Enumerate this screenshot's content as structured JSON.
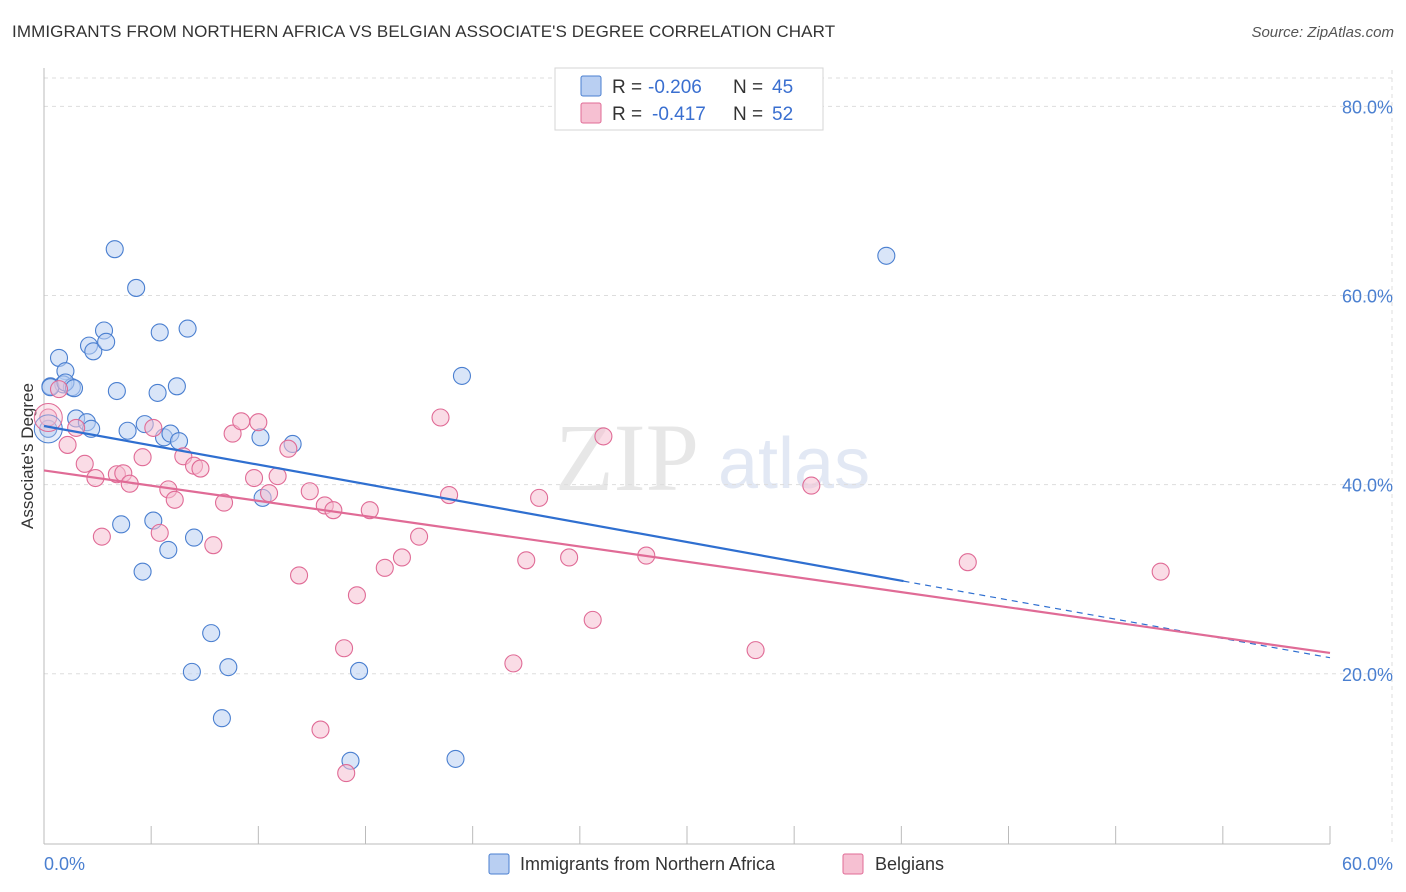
{
  "title": "IMMIGRANTS FROM NORTHERN AFRICA VS BELGIAN ASSOCIATE'S DEGREE CORRELATION CHART",
  "source": "Source: ZipAtlas.com",
  "watermark": {
    "zip": "ZIP",
    "atlas": "atlas"
  },
  "colors": {
    "blue": "#4a7fd0",
    "blue_fill": "#b9cff2",
    "blue_line": "#2f6fd0",
    "pink": "#e06b96",
    "pink_fill": "#f6c0d2",
    "pink_line": "#e06b96",
    "grid": "#dddddd",
    "axis": "#bbbbbb"
  },
  "legend": {
    "r_label": "R =",
    "n_label": "N =",
    "rows": [
      {
        "series": "blue",
        "r": "-0.206",
        "n": "45"
      },
      {
        "series": "pink",
        "r": "-0.417",
        "n": "52"
      }
    ]
  },
  "chart_data": {
    "type": "scatter",
    "title": "IMMIGRANTS FROM NORTHERN AFRICA VS BELGIAN ASSOCIATE'S DEGREE CORRELATION CHART",
    "xlabel": "",
    "ylabel": "Associate's Degree",
    "xlim": [
      0,
      60
    ],
    "ylim": [
      2,
      83
    ],
    "x_tick_labels": [
      {
        "value": 0,
        "label": "0.0%"
      },
      {
        "value": 60,
        "label": "60.0%"
      }
    ],
    "y_ticks": [
      {
        "value": 20,
        "label": "20.0%"
      },
      {
        "value": 40,
        "label": "40.0%"
      },
      {
        "value": 60,
        "label": "60.0%"
      },
      {
        "value": 80,
        "label": "80.0%"
      }
    ],
    "grid": true,
    "series": [
      {
        "name": "Immigrants from Northern Africa",
        "color": "blue",
        "points": [
          [
            0.2,
            45.9
          ],
          [
            0.3,
            50.4
          ],
          [
            0.7,
            53.4
          ],
          [
            1.0,
            52.0
          ],
          [
            0.9,
            50.6
          ],
          [
            1.3,
            50.3
          ],
          [
            1.5,
            47.0
          ],
          [
            2.0,
            46.6
          ],
          [
            2.2,
            45.9
          ],
          [
            2.1,
            54.7
          ],
          [
            2.3,
            54.1
          ],
          [
            2.8,
            56.3
          ],
          [
            2.9,
            55.1
          ],
          [
            3.3,
            64.9
          ],
          [
            3.4,
            49.9
          ],
          [
            3.9,
            45.7
          ],
          [
            4.3,
            60.8
          ],
          [
            4.7,
            46.4
          ],
          [
            5.3,
            49.7
          ],
          [
            5.4,
            56.1
          ],
          [
            5.6,
            45.0
          ],
          [
            5.9,
            45.4
          ],
          [
            6.2,
            50.4
          ],
          [
            6.3,
            44.6
          ],
          [
            6.7,
            56.5
          ],
          [
            3.6,
            35.8
          ],
          [
            5.1,
            36.2
          ],
          [
            4.6,
            30.8
          ],
          [
            5.8,
            33.1
          ],
          [
            7.0,
            34.4
          ],
          [
            7.8,
            24.3
          ],
          [
            6.9,
            20.2
          ],
          [
            8.6,
            20.7
          ],
          [
            8.3,
            15.3
          ],
          [
            10.1,
            45.0
          ],
          [
            10.2,
            38.6
          ],
          [
            11.6,
            44.3
          ],
          [
            14.3,
            10.8
          ],
          [
            14.7,
            20.3
          ],
          [
            19.5,
            51.5
          ],
          [
            19.2,
            11.0
          ],
          [
            39.3,
            64.2
          ],
          [
            0.3,
            50.3
          ],
          [
            1.0,
            50.8
          ],
          [
            1.4,
            50.2
          ]
        ]
      },
      {
        "name": "Belgians",
        "color": "pink",
        "points": [
          [
            0.2,
            47.1
          ],
          [
            0.7,
            50.1
          ],
          [
            1.1,
            44.2
          ],
          [
            1.5,
            46.0
          ],
          [
            1.9,
            42.2
          ],
          [
            2.4,
            40.7
          ],
          [
            2.7,
            34.5
          ],
          [
            3.4,
            41.1
          ],
          [
            3.7,
            41.2
          ],
          [
            4.0,
            40.1
          ],
          [
            4.6,
            42.9
          ],
          [
            5.1,
            46.0
          ],
          [
            5.4,
            34.9
          ],
          [
            5.8,
            39.5
          ],
          [
            6.1,
            38.4
          ],
          [
            6.5,
            43.0
          ],
          [
            7.0,
            42.0
          ],
          [
            7.3,
            41.7
          ],
          [
            7.9,
            33.6
          ],
          [
            8.4,
            38.1
          ],
          [
            8.8,
            45.4
          ],
          [
            9.2,
            46.7
          ],
          [
            9.8,
            40.7
          ],
          [
            10.0,
            46.6
          ],
          [
            10.5,
            39.1
          ],
          [
            10.9,
            40.9
          ],
          [
            11.4,
            43.8
          ],
          [
            11.9,
            30.4
          ],
          [
            12.4,
            39.3
          ],
          [
            13.1,
            37.8
          ],
          [
            13.5,
            37.3
          ],
          [
            14.0,
            22.7
          ],
          [
            14.6,
            28.3
          ],
          [
            15.2,
            37.3
          ],
          [
            15.9,
            31.2
          ],
          [
            16.7,
            32.3
          ],
          [
            17.5,
            34.5
          ],
          [
            18.5,
            47.1
          ],
          [
            18.9,
            38.9
          ],
          [
            21.9,
            21.1
          ],
          [
            22.5,
            32.0
          ],
          [
            23.1,
            38.6
          ],
          [
            24.5,
            32.3
          ],
          [
            25.6,
            25.7
          ],
          [
            26.1,
            45.1
          ],
          [
            28.1,
            32.5
          ],
          [
            33.2,
            22.5
          ],
          [
            35.8,
            39.9
          ],
          [
            43.1,
            31.8
          ],
          [
            52.1,
            30.8
          ],
          [
            12.9,
            14.1
          ],
          [
            14.1,
            9.5
          ]
        ]
      }
    ],
    "trend_lines": [
      {
        "series": "blue",
        "solid": [
          [
            0,
            46.2
          ],
          [
            40.1,
            29.8
          ]
        ],
        "dashed": [
          [
            40.1,
            29.8
          ],
          [
            60,
            21.7
          ]
        ]
      },
      {
        "series": "pink",
        "solid": [
          [
            0,
            41.5
          ],
          [
            60,
            22.2
          ]
        ]
      }
    ]
  }
}
